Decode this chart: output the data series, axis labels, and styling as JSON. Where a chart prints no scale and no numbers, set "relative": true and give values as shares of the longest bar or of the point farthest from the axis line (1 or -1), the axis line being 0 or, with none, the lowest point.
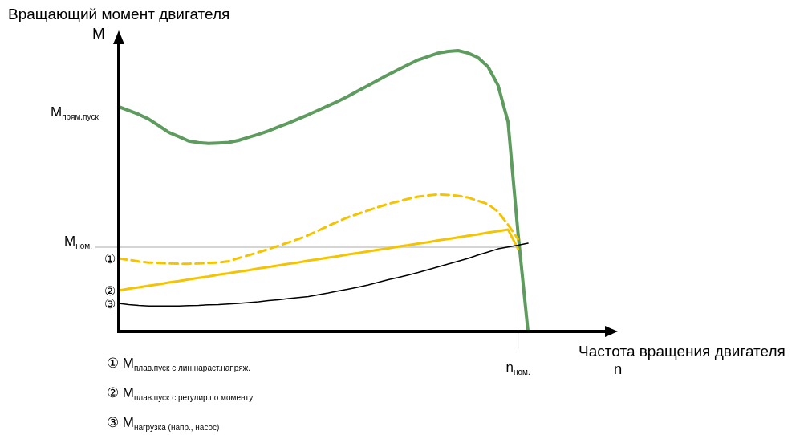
{
  "chart_data": {
    "type": "line",
    "relative": true,
    "xlabel": "Частота вращения двигателя\nn",
    "ylabel": "Вращающий момент двигателя\nM",
    "categories": [
      null,
      null,
      null,
      null,
      null,
      null,
      null,
      null,
      null,
      null,
      null,
      null,
      null,
      null,
      null,
      null,
      null,
      null,
      null,
      null,
      null,
      null,
      null,
      null,
      null,
      null,
      null,
      null,
      null,
      null,
      null,
      null,
      null,
      null,
      null,
      null,
      null,
      null,
      null,
      null,
      null,
      null
    ],
    "series": [
      {
        "color": "#5e9b5e",
        "line_style": "solid",
        "values": [
          0.8,
          0.787,
          0.773,
          0.756,
          0.733,
          0.709,
          0.694,
          0.678,
          0.672,
          0.669,
          0.671,
          0.673,
          0.68,
          0.691,
          0.702,
          0.714,
          0.728,
          0.742,
          0.757,
          0.772,
          0.788,
          0.804,
          0.82,
          0.838,
          0.857,
          0.876,
          0.895,
          0.914,
          0.932,
          0.95,
          0.967,
          0.979,
          0.991,
          0.997,
          1,
          0.991,
          0.975,
          0.942,
          0.876,
          0.746,
          0.35,
          0
        ]
      },
      {
        "name": "①",
        "color": "#f5c400",
        "line_style": "dashed",
        "values": [
          0.26,
          0.255,
          0.249,
          0.245,
          0.244,
          0.242,
          0.241,
          0.241,
          0.242,
          0.244,
          0.245,
          0.25,
          0.261,
          0.271,
          0.282,
          0.293,
          0.305,
          0.317,
          0.329,
          0.343,
          0.359,
          0.376,
          0.392,
          0.407,
          0.419,
          0.431,
          0.443,
          0.454,
          0.463,
          0.472,
          0.48,
          0.484,
          0.488,
          0.486,
          0.483,
          0.477,
          0.465,
          0.453,
          0.426,
          0.38,
          0.329,
          null
        ]
      },
      {
        "name": "②",
        "color": "#f5c400",
        "line_style": "solid",
        "values": [
          0.146,
          0.152,
          0.157,
          0.163,
          0.168,
          0.174,
          0.179,
          0.185,
          0.191,
          0.196,
          0.202,
          0.207,
          0.213,
          0.218,
          0.224,
          0.229,
          0.235,
          0.241,
          0.246,
          0.252,
          0.257,
          0.263,
          0.268,
          0.274,
          0.279,
          0.285,
          0.291,
          0.296,
          0.302,
          0.307,
          0.313,
          0.318,
          0.324,
          0.329,
          0.335,
          0.341,
          0.346,
          0.352,
          0.357,
          0.363,
          0.294,
          null
        ]
      },
      {
        "name": "③",
        "color": "#000000",
        "line_style": "solid",
        "values": [
          0.1,
          0.096,
          0.093,
          0.091,
          0.091,
          0.091,
          0.091,
          0.092,
          0.093,
          0.095,
          0.096,
          0.098,
          0.1,
          0.103,
          0.106,
          0.11,
          0.113,
          0.117,
          0.121,
          0.124,
          0.131,
          0.137,
          0.144,
          0.151,
          0.158,
          0.166,
          0.175,
          0.184,
          0.192,
          0.201,
          0.21,
          0.22,
          0.23,
          0.24,
          0.25,
          0.26,
          0.272,
          0.283,
          0.294,
          0.301,
          0.307,
          0.314
        ]
      }
    ],
    "ref_lines": [
      {
        "axis": "y",
        "value": 0.3,
        "label": "M$_{ном.}$",
        "color": "#aaaaaa"
      }
    ],
    "annotations": [
      "M$_{прям.пуск}$",
      "① M$_{плав.пуск с лин.нараст.напряж.}$",
      "② M$_{плав.пуск с регулир.по моменту}$",
      "③ M$_{нагрузка (напр., насос)}$",
      "n$_{ном.}$"
    ]
  }
}
